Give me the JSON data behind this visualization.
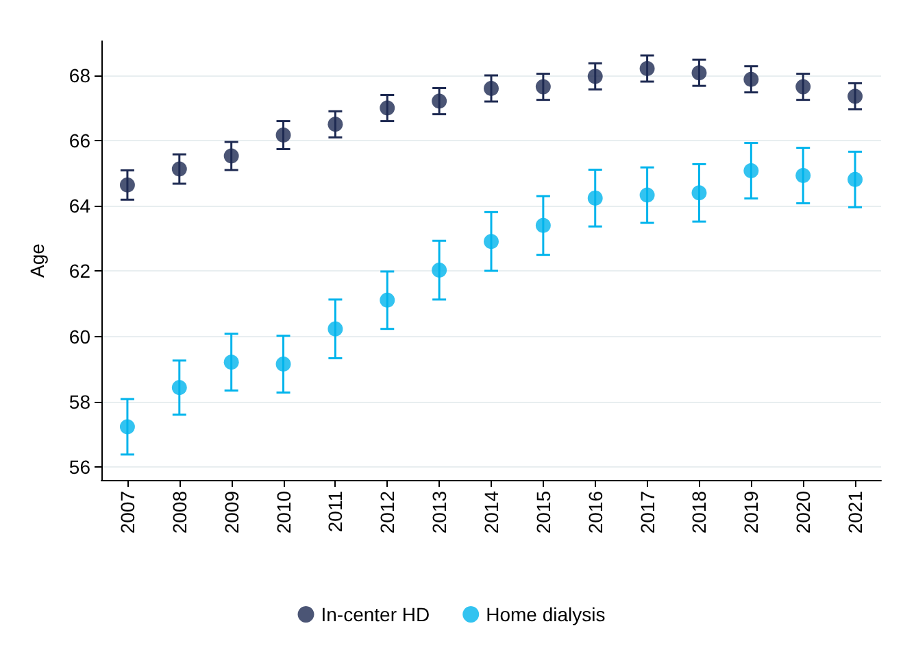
{
  "chart_data": {
    "type": "scatter",
    "ylabel": "Age",
    "categories": [
      "2007",
      "2008",
      "2009",
      "2010",
      "2011",
      "2012",
      "2013",
      "2014",
      "2015",
      "2016",
      "2017",
      "2018",
      "2019",
      "2020",
      "2021"
    ],
    "series": [
      {
        "name": "In-center HD",
        "color": "#1e2a52",
        "values": [
          64.64,
          65.13,
          65.53,
          66.17,
          66.5,
          67.0,
          67.21,
          67.6,
          67.65,
          67.97,
          68.21,
          68.08,
          67.88,
          67.65,
          67.36
        ],
        "errors": [
          0.45,
          0.45,
          0.43,
          0.43,
          0.4,
          0.4,
          0.4,
          0.4,
          0.4,
          0.4,
          0.4,
          0.4,
          0.4,
          0.4,
          0.4
        ]
      },
      {
        "name": "Home dialysis",
        "color": "#00b4ec",
        "values": [
          57.23,
          58.43,
          59.21,
          59.15,
          60.23,
          61.11,
          62.03,
          62.91,
          63.4,
          64.24,
          64.33,
          64.4,
          65.08,
          64.93,
          64.81
        ],
        "errors": [
          0.85,
          0.83,
          0.87,
          0.87,
          0.9,
          0.88,
          0.9,
          0.9,
          0.9,
          0.87,
          0.85,
          0.88,
          0.85,
          0.85,
          0.85
        ]
      }
    ],
    "ylim": [
      55.6,
      69.05
    ],
    "yticks": [
      56,
      58,
      60,
      62,
      64,
      66,
      68
    ],
    "grid": "y",
    "legend": "bottom",
    "marker": "circle"
  }
}
